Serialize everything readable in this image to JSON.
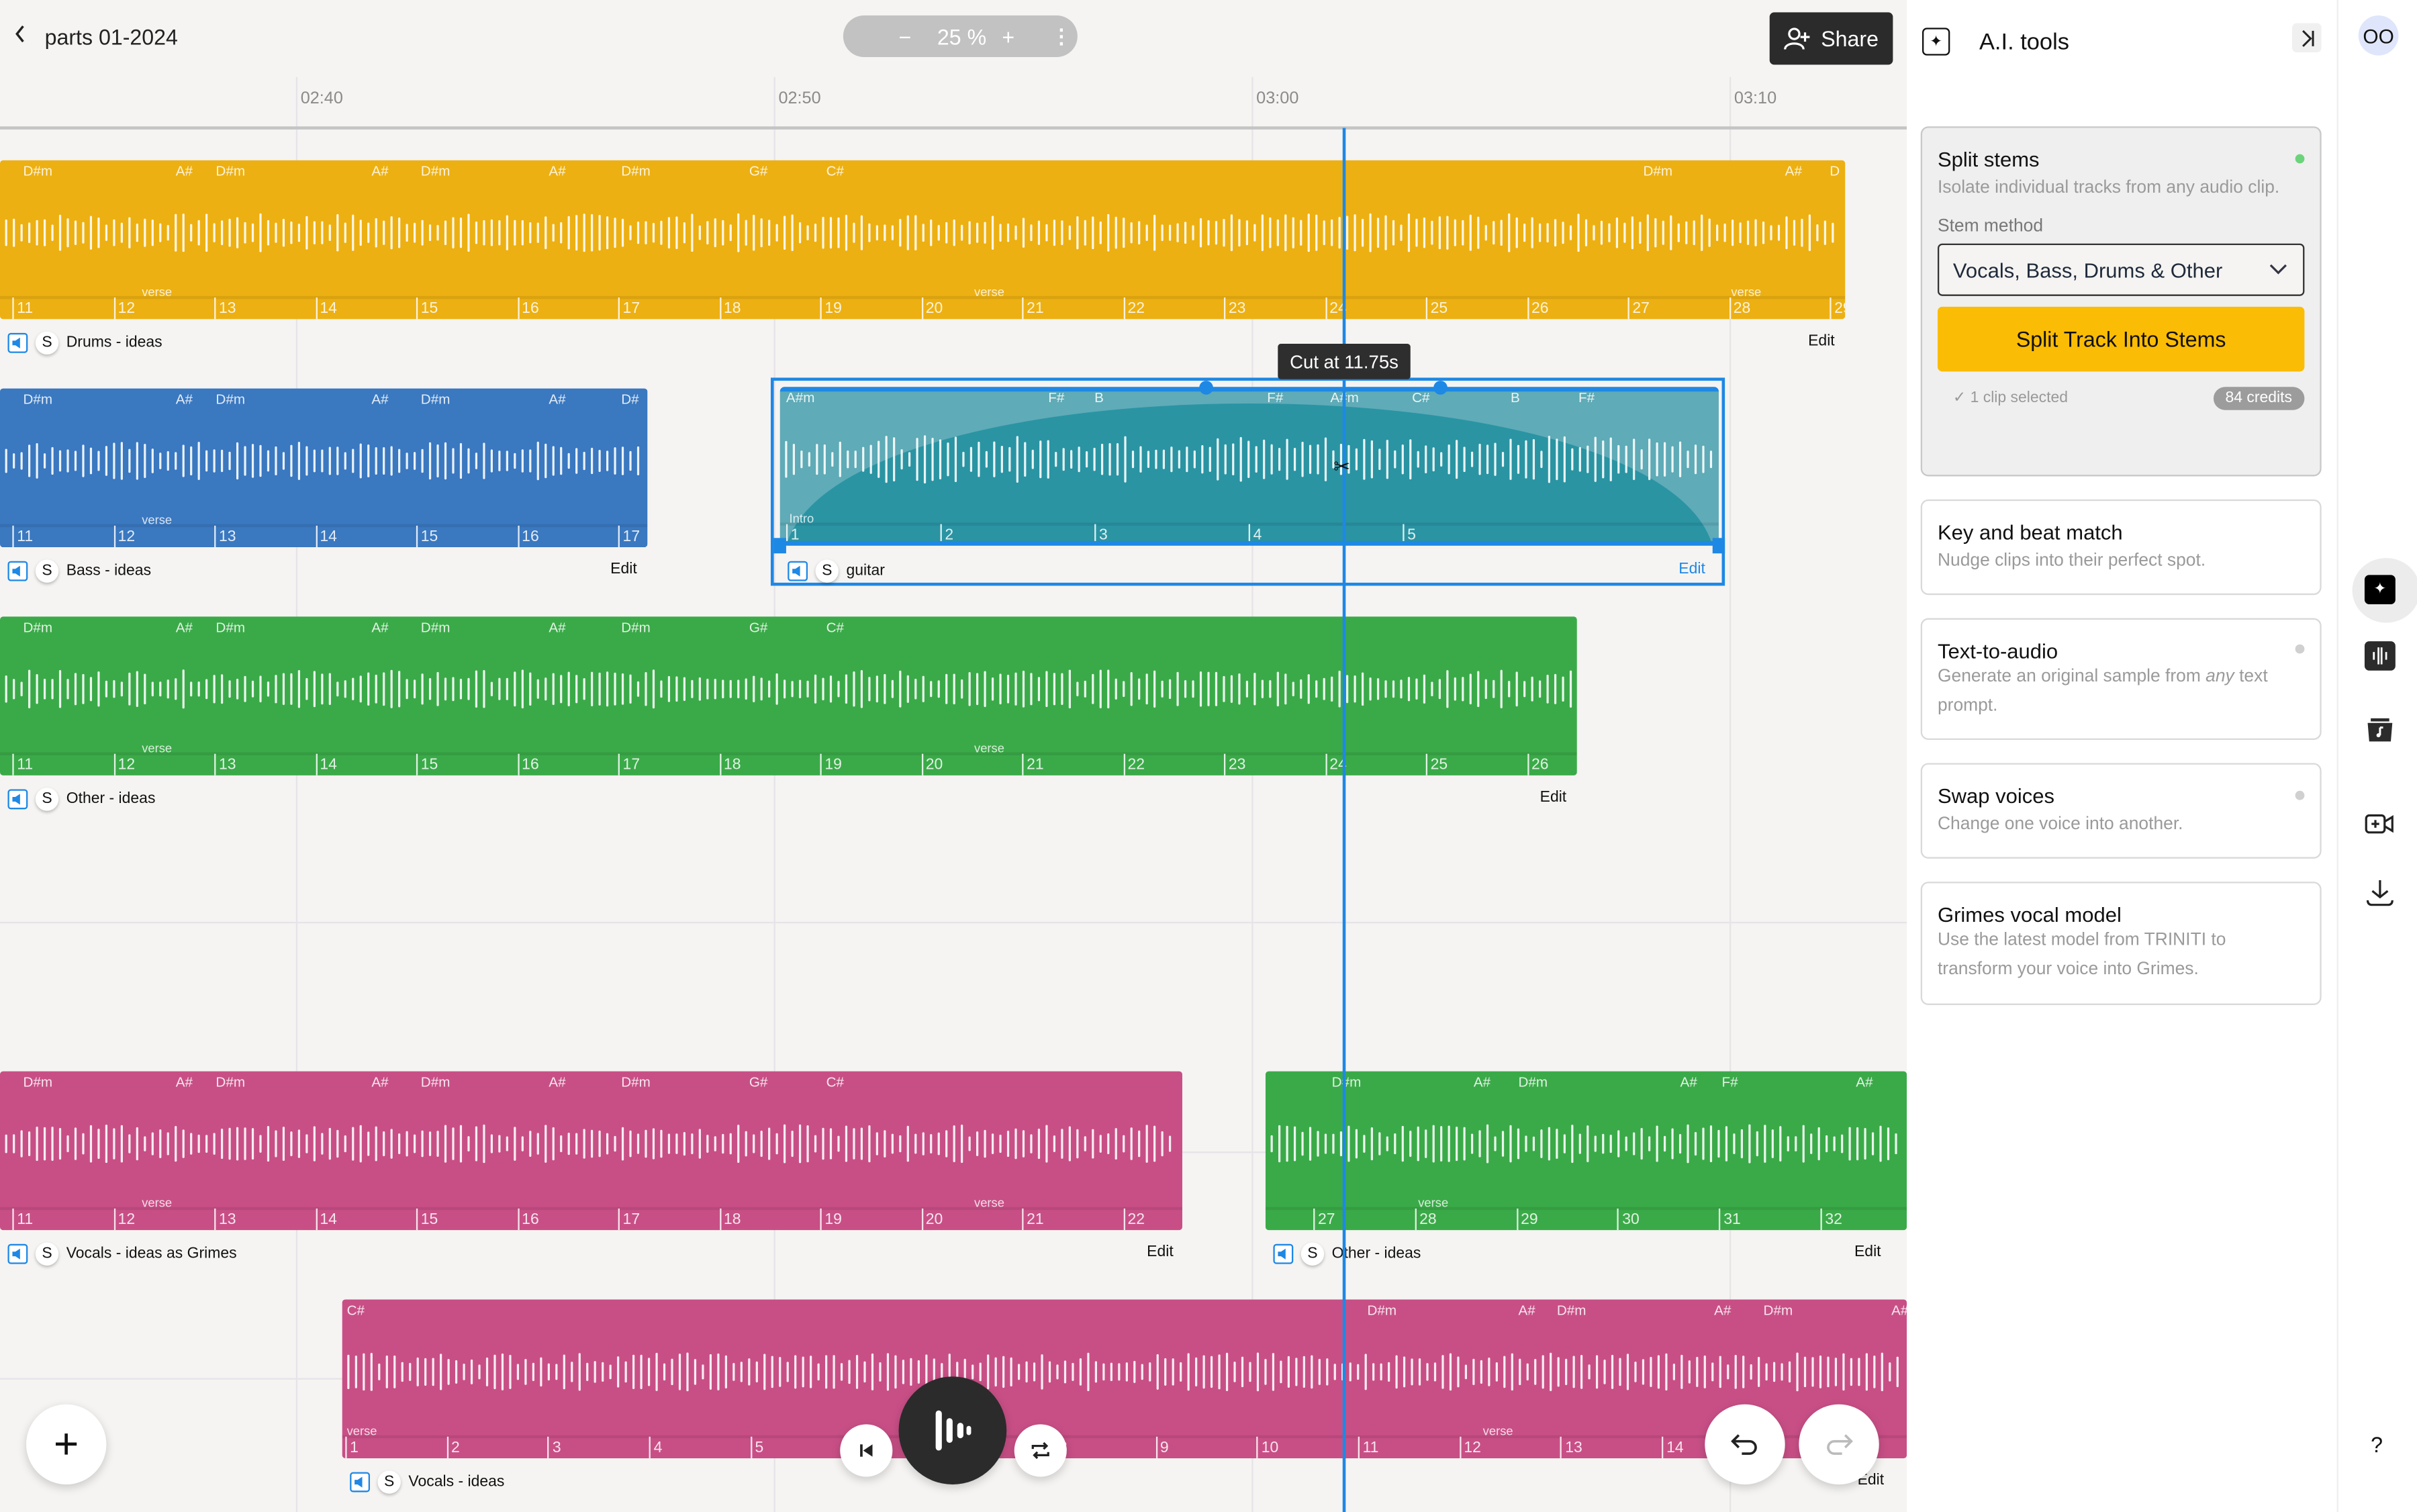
{
  "header": {
    "title": "parts 01-2024",
    "zoom_level": "25 %",
    "zoom_minus": "−",
    "zoom_plus": "+",
    "share_label": "Share"
  },
  "timeline": {
    "ruler": [
      "02:40",
      "02:50",
      "03:00",
      "03:10"
    ],
    "playhead_tooltip": "Cut at 11.75s"
  },
  "tracks": [
    {
      "name": "Drums - ideas",
      "color": "#EDB012",
      "edit": "Edit",
      "selected": false,
      "chords": [
        "D#m",
        "A#",
        "D#m",
        "A#",
        "D#m",
        "A#",
        "D#m",
        "G#",
        "C#",
        "D#m",
        "A#",
        "D"
      ],
      "bars": [
        11,
        12,
        13,
        14,
        15,
        16,
        17,
        18,
        19,
        20,
        21,
        22,
        23,
        24,
        25,
        26,
        27,
        28,
        29
      ],
      "sections": [
        "verse",
        "verse",
        "verse"
      ]
    },
    {
      "name": "Bass - ideas",
      "color": "#3A78C0",
      "edit": "Edit",
      "selected": false,
      "chords": [
        "D#m",
        "A#",
        "D#m",
        "A#",
        "D#m",
        "A#",
        "D#"
      ],
      "bars": [
        11,
        12,
        13,
        14,
        15,
        16,
        17
      ],
      "sections": [
        "verse"
      ]
    },
    {
      "name": "guitar",
      "color": "#2A94A3",
      "edit": "Edit",
      "selected": true,
      "chords": [
        "A#m",
        "F#",
        "B",
        "F#",
        "A#m",
        "C#",
        "B",
        "F#"
      ],
      "bars": [
        1,
        2,
        3,
        4,
        5
      ],
      "sections": [
        "Intro"
      ]
    },
    {
      "name": "Other - ideas",
      "color": "#3AAA48",
      "edit": "Edit",
      "selected": false,
      "chords": [
        "D#m",
        "A#",
        "D#m",
        "A#",
        "D#m",
        "A#",
        "D#m",
        "G#",
        "C#"
      ],
      "bars": [
        11,
        12,
        13,
        14,
        15,
        16,
        17,
        18,
        19,
        20,
        21,
        22,
        23,
        24,
        25,
        26
      ],
      "sections": [
        "verse",
        "verse"
      ]
    },
    {
      "name": "Vocals - ideas as Grimes",
      "color": "#C84F86",
      "edit": "Edit",
      "selected": false,
      "chords": [
        "D#m",
        "A#",
        "D#m",
        "A#",
        "D#m",
        "A#",
        "D#m",
        "G#",
        "C#"
      ],
      "bars": [
        11,
        12,
        13,
        14,
        15,
        16,
        17,
        18,
        19,
        20,
        21,
        22
      ],
      "sections": [
        "verse",
        "verse"
      ]
    },
    {
      "name": "Other - ideas",
      "color": "#3AAA48",
      "edit": "Edit",
      "selected": false,
      "chords": [
        "D#m",
        "A#",
        "D#m",
        "A#",
        "F#",
        "A#"
      ],
      "bars": [
        27,
        28,
        29,
        30,
        31,
        32
      ],
      "sections": [
        "verse"
      ]
    },
    {
      "name": "Vocals - ideas",
      "color": "#C84F86",
      "edit": "Edit",
      "selected": false,
      "chords": [
        "C#",
        "D#m",
        "A#",
        "D#m",
        "A#",
        "D#m",
        "A#"
      ],
      "bars": [
        1,
        2,
        3,
        4,
        5,
        6,
        7,
        8,
        9,
        10,
        11,
        12,
        13,
        14
      ],
      "sections": [
        "verse",
        "verse"
      ]
    }
  ],
  "solo_label": "S",
  "ai_panel": {
    "title": "A.I. tools",
    "split_stems": {
      "title": "Split stems",
      "description": "Isolate individual tracks from any audio clip.",
      "status_color": "#6BD47A",
      "method_label": "Stem method",
      "method_value": "Vocals, Bass, Drums & Other",
      "button_label": "Split Track Into Stems",
      "button_color": "#FBBC05",
      "selection_status": "1 clip selected",
      "credits": "84 credits"
    },
    "tools": [
      {
        "title": "Key and beat match",
        "description": "Nudge clips into their perfect spot.",
        "dot": false
      },
      {
        "title": "Text-to-audio",
        "description_pre": "Generate an original sample from ",
        "description_em": "any",
        "description_post": " text prompt.",
        "dot": true
      },
      {
        "title": "Swap voices",
        "description": "Change one voice into another.",
        "dot": true
      },
      {
        "title": "Grimes vocal model",
        "description": "Use the latest model from TRINITI to transform your voice into Grimes.",
        "dot": false
      }
    ]
  },
  "rail": {
    "avatar_initials": "OO",
    "icons": [
      "ai-tools-icon",
      "waveform-icon",
      "music-library-icon",
      "add-video-icon",
      "download-icon"
    ],
    "help_label": "?"
  },
  "colors": {
    "playhead": "#1E88E5",
    "selection": "#1E88E5"
  }
}
